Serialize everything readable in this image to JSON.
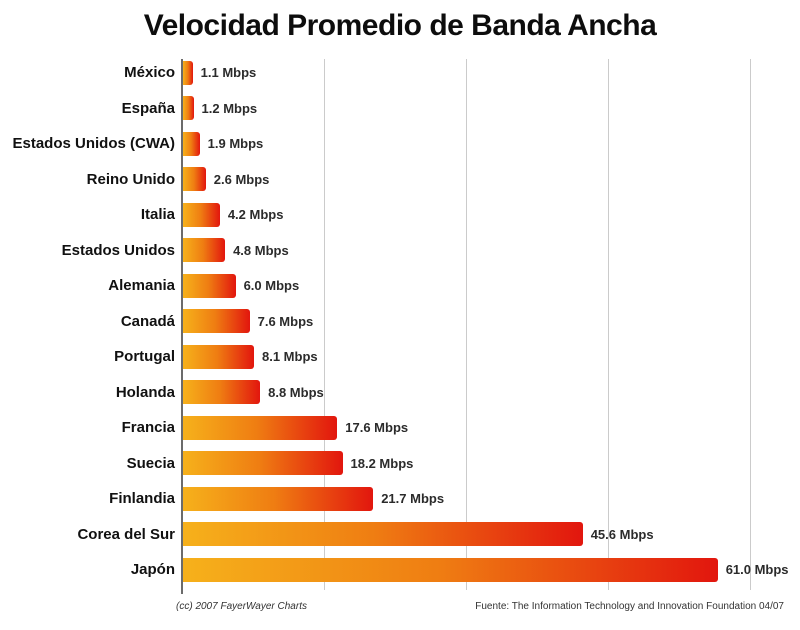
{
  "title": "Velocidad Promedio de Banda Ancha",
  "footer": {
    "credit": "(cc) 2007 FayerWayer Charts",
    "source": "Fuente: The Information Technology and Innovation Foundation 04/07"
  },
  "chart_data": {
    "type": "bar",
    "orientation": "horizontal",
    "title": "Velocidad Promedio de Banda Ancha",
    "unit": "Mbps",
    "categories": [
      "México",
      "España",
      "Estados Unidos (CWA)",
      "Reino Unido",
      "Italia",
      "Estados Unidos",
      "Alemania",
      "Canadá",
      "Portugal",
      "Holanda",
      "Francia",
      "Suecia",
      "Finlandia",
      "Corea del Sur",
      "Japón"
    ],
    "values": [
      1.1,
      1.2,
      1.9,
      2.6,
      4.2,
      4.8,
      6.0,
      7.6,
      8.1,
      8.8,
      17.6,
      18.2,
      21.7,
      45.6,
      61.0
    ],
    "value_labels": [
      "1.1 Mbps",
      "1.2 Mbps",
      "1.9 Mbps",
      "2.6 Mbps",
      "4.2 Mbps",
      "4.8 Mbps",
      "6.0 Mbps",
      "7.6 Mbps",
      "8.1 Mbps",
      "8.8 Mbps",
      "17.6 Mbps",
      "18.2 Mbps",
      "21.7 Mbps",
      "45.6 Mbps",
      "61.0 Mbps"
    ],
    "xlim": [
      0,
      64.8
    ],
    "gridlines_x": [
      16.2,
      32.4,
      48.6,
      64.8
    ],
    "grid": true,
    "legend": false,
    "value_labels_shown": true,
    "colors": {
      "bar_gradient_start": "#F6B11B",
      "bar_gradient_mid": "#EF7D12",
      "bar_gradient_end": "#E2160E",
      "axis": "#6b6b6b",
      "gridline": "#cbcbcb",
      "title_text": "#0d0d0d",
      "label_text": "#111111",
      "value_text": "#2b2b2b",
      "footer_text": "#333333",
      "background": "#ffffff"
    }
  }
}
